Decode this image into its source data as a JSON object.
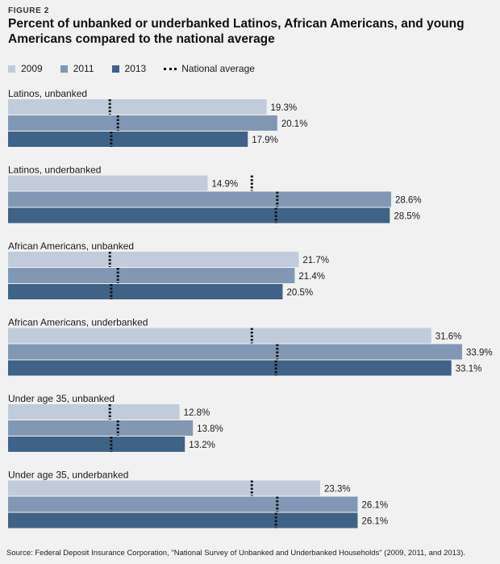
{
  "figure_label": "FIGURE 2",
  "title": "Percent of unbanked or underbanked Latinos, African Americans, and young Americans compared to the national average",
  "source": "Source: Federal Deposit Insurance Corporation, \"National Survey of Unbanked and Underbanked Households\" (2009, 2011, and 2013).",
  "legend": {
    "items": [
      {
        "label": "2009",
        "color": "#c0ccd9"
      },
      {
        "label": "2011",
        "color": "#8098b3"
      },
      {
        "label": "2013",
        "color": "#3f6287"
      }
    ],
    "national_average_label": "National average"
  },
  "chart_data": {
    "type": "bar",
    "orientation": "horizontal",
    "title": "Percent of unbanked or underbanked Latinos, African Americans, and young Americans compared to the national average",
    "xlim": [
      0,
      35
    ],
    "grid": false,
    "legend_position": "top-left",
    "series_names": [
      "2009",
      "2011",
      "2013"
    ],
    "series_colors": [
      "#c0ccd9",
      "#8098b3",
      "#3f6287"
    ],
    "groups": [
      {
        "label": "Latinos, unbanked",
        "values": [
          19.3,
          20.1,
          17.9
        ],
        "value_labels": [
          "19.3%",
          "20.1%",
          "17.9%"
        ],
        "national_average": [
          7.6,
          8.2,
          7.7
        ]
      },
      {
        "label": "Latinos, underbanked",
        "values": [
          14.9,
          28.6,
          28.5
        ],
        "value_labels": [
          "14.9%",
          "28.6%",
          "28.5%"
        ],
        "national_average": [
          18.2,
          20.1,
          20.0
        ]
      },
      {
        "label": "African Americans, unbanked",
        "values": [
          21.7,
          21.4,
          20.5
        ],
        "value_labels": [
          "21.7%",
          "21.4%",
          "20.5%"
        ],
        "national_average": [
          7.6,
          8.2,
          7.7
        ]
      },
      {
        "label": "African Americans, underbanked",
        "values": [
          31.6,
          33.9,
          33.1
        ],
        "value_labels": [
          "31.6%",
          "33.9%",
          "33.1%"
        ],
        "national_average": [
          18.2,
          20.1,
          20.0
        ]
      },
      {
        "label": "Under age 35, unbanked",
        "values": [
          12.8,
          13.8,
          13.2
        ],
        "value_labels": [
          "12.8%",
          "13.8%",
          "13.2%"
        ],
        "national_average": [
          7.6,
          8.2,
          7.7
        ]
      },
      {
        "label": "Under age 35, underbanked",
        "values": [
          23.3,
          26.1,
          26.1
        ],
        "value_labels": [
          "23.3%",
          "26.1%",
          "26.1%"
        ],
        "national_average": [
          18.2,
          20.1,
          20.0
        ]
      }
    ]
  }
}
